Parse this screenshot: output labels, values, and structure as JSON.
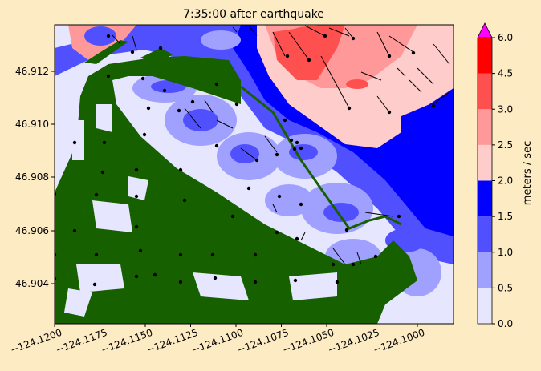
{
  "figure": {
    "title": "7:35:00 after earthquake",
    "background": "#fdebc4"
  },
  "chart_data": {
    "type": "heatmap",
    "title": "7:35:00 after earthquake",
    "x_ticks": [
      "−124.1200",
      "−124.1175",
      "−124.1150",
      "−124.1125",
      "−124.1100",
      "−124.1075",
      "−124.1050",
      "−124.1025",
      "−124.1000"
    ],
    "y_ticks": [
      "46.904",
      "46.906",
      "46.908",
      "46.910",
      "46.912"
    ],
    "xlim": [
      -124.12,
      -124.098
    ],
    "ylim": [
      46.9026,
      46.9137
    ],
    "land_color": "#176000",
    "colorbar": {
      "label": "meters / sec",
      "levels": [
        0.0,
        0.5,
        1.0,
        1.5,
        2.0,
        2.5,
        3.0,
        4.5,
        6.0
      ],
      "tick_labels": [
        "0.0",
        "0.5",
        "1.0",
        "1.5",
        "2.0",
        "2.5",
        "3.0",
        "4.5",
        "6.0"
      ],
      "colors": [
        "#e6e6ff",
        "#a0a0ff",
        "#5050ff",
        "#0000ff",
        "#ffcccc",
        "#ff9999",
        "#ff5050",
        "#ff0000"
      ],
      "extend_color": "#ff00ff"
    }
  }
}
